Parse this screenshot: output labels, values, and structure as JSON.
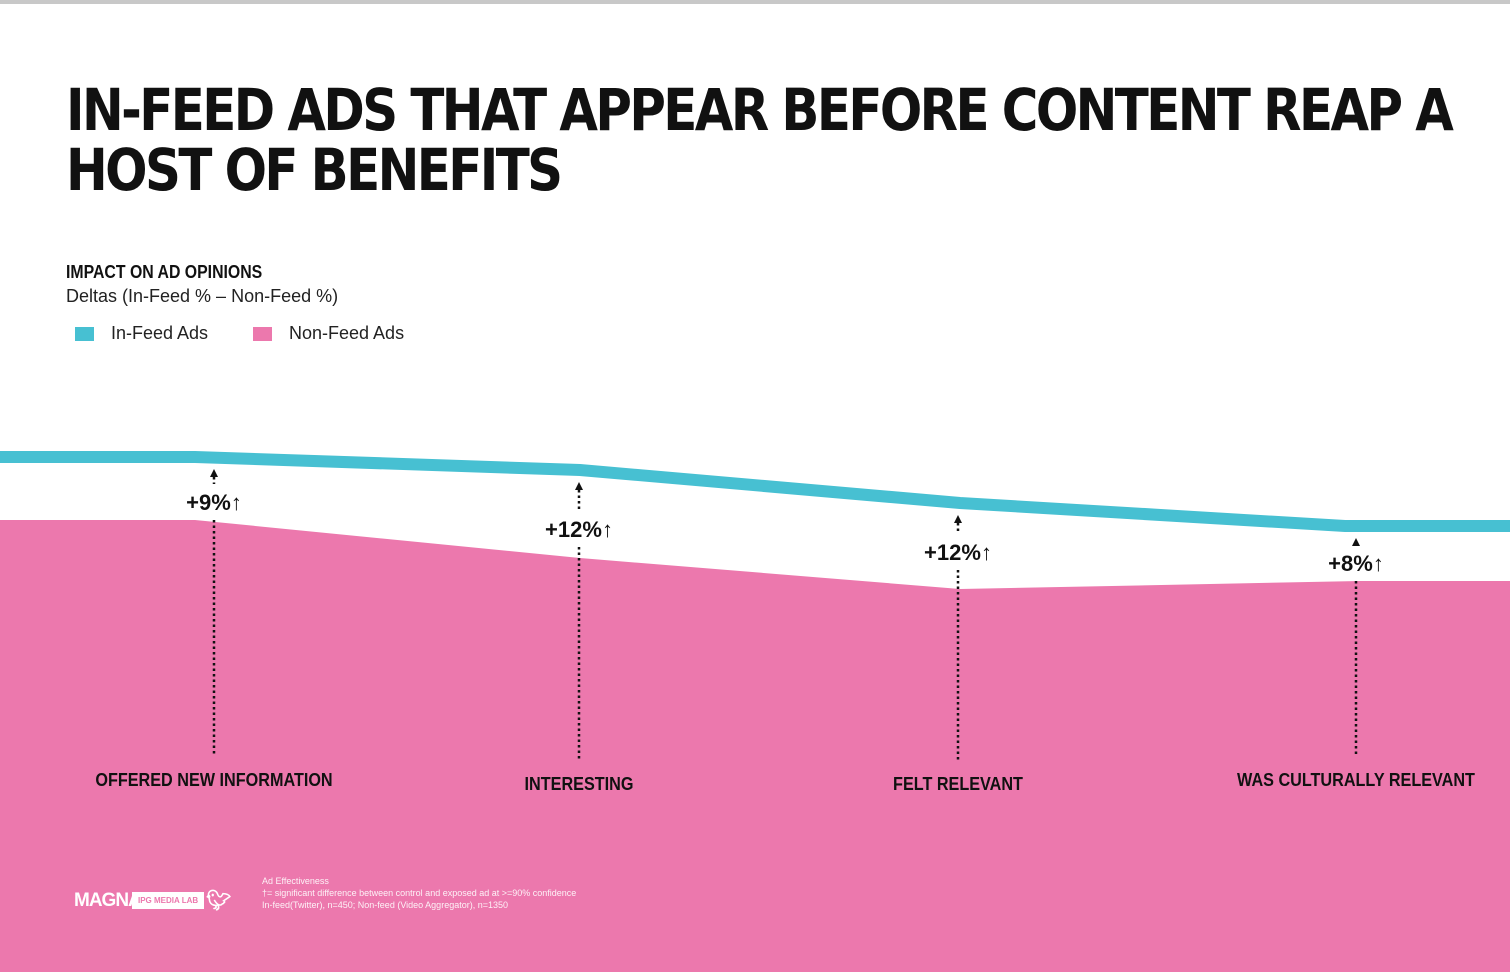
{
  "title": "IN-FEED ADS THAT APPEAR BEFORE CONTENT REAP A HOST OF BENEFITS",
  "chart_data": {
    "type": "area",
    "subhead": "IMPACT ON AD OPINIONS",
    "subtitle": "Deltas (In-Feed % – Non-Feed %)",
    "categories": [
      "OFFERED NEW INFORMATION",
      "INTERESTING",
      "FELT RELEVANT",
      "WAS CULTURALLY RELEVANT"
    ],
    "series": [
      {
        "name": "In-Feed Ads",
        "color": "#47c0d2"
      },
      {
        "name": "Non-Feed Ads",
        "color": "#ec78ad"
      }
    ],
    "deltas": [
      "+9%",
      "+12%",
      "+12%",
      "+8%"
    ],
    "delta_values": [
      9,
      12,
      12,
      8
    ],
    "significance_marker": "↑"
  },
  "footer": {
    "logo_magna": "MAGNA",
    "logo_ipg": "IPG MEDIA LAB",
    "twitter_icon": "twitter-bird-icon",
    "notes": [
      "Ad Effectiveness",
      "†= significant difference between control and exposed ad at >=90% confidence",
      "In-feed(Twitter), n=450; Non-feed (Video Aggregator), n=1350"
    ]
  }
}
